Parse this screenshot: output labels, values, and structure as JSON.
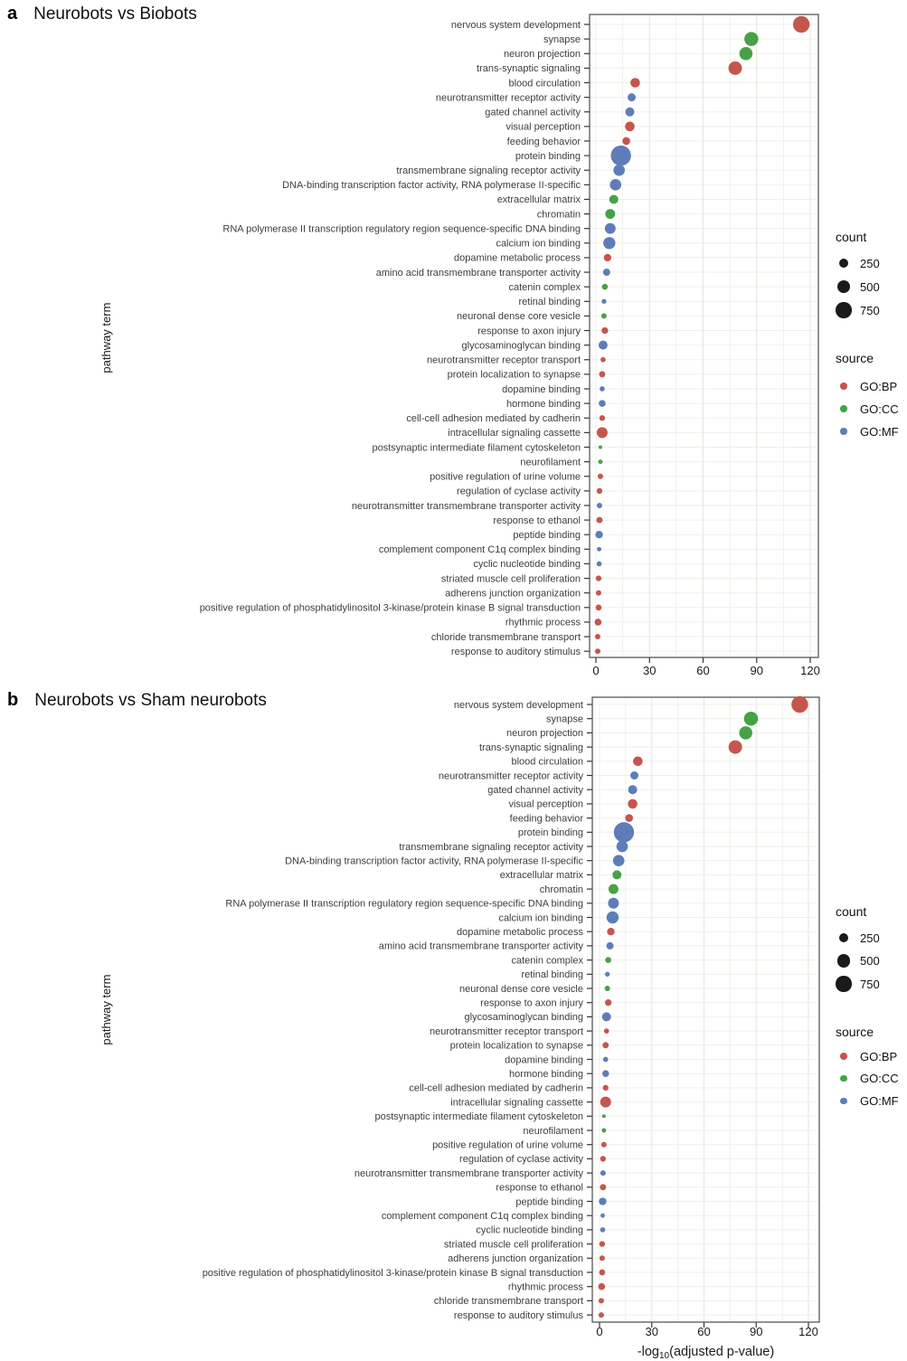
{
  "figure": {
    "panels": [
      {
        "label": "a",
        "title": "Neurobots vs Biobots"
      },
      {
        "label": "b",
        "title": "Neurobots vs Sham neurobots"
      }
    ]
  },
  "legend": {
    "count": {
      "title": "count",
      "items": [
        {
          "label": "250",
          "value": 250
        },
        {
          "label": "500",
          "value": 500
        },
        {
          "label": "750",
          "value": 750
        }
      ]
    },
    "source": {
      "title": "source",
      "items": [
        {
          "label": "GO:BP",
          "color": "#C5564E"
        },
        {
          "label": "GO:CC",
          "color": "#46A246"
        },
        {
          "label": "GO:MF",
          "color": "#5E7DB8"
        }
      ]
    },
    "circle_color": "#1A1A1A"
  },
  "chart_data": [
    {
      "panel": "a",
      "type": "scatter",
      "title": "Neurobots vs Biobots",
      "xlabel": "",
      "ylabel": "pathway term",
      "xlim": [
        0,
        120
      ],
      "xticks": [
        0,
        30,
        60,
        90,
        120
      ],
      "grid": true,
      "legend_position": "right",
      "categories": [
        "nervous system development",
        "synapse",
        "neuron projection",
        "trans-synaptic signaling",
        "blood circulation",
        "neurotransmitter receptor activity",
        "gated channel activity",
        "visual perception",
        "feeding behavior",
        "protein binding",
        "transmembrane signaling receptor activity",
        "DNA-binding transcription factor activity, RNA polymerase II-specific",
        "extracellular matrix",
        "chromatin",
        "RNA polymerase II transcription regulatory region sequence-specific DNA binding",
        "calcium ion binding",
        "dopamine metabolic process",
        "amino acid transmembrane transporter activity",
        "catenin complex",
        "retinal binding",
        "neuronal dense core vesicle",
        "response to axon injury",
        "glycosaminoglycan binding",
        "neurotransmitter receptor transport",
        "protein localization to synapse",
        "dopamine binding",
        "hormone binding",
        "cell-cell adhesion mediated by cadherin",
        "intracellular signaling cassette",
        "postsynaptic intermediate filament cytoskeleton",
        "neurofilament",
        "positive regulation of urine volume",
        "regulation of cyclase activity",
        "neurotransmitter transmembrane transporter activity",
        "response to ethanol",
        "peptide binding",
        "complement component C1q complex binding",
        "cyclic nucleotide binding",
        "striated muscle cell proliferation",
        "adherens junction organization",
        "positive regulation of phosphatidylinositol 3-kinase/protein kinase B signal transduction",
        "rhythmic process",
        "chloride transmembrane transport",
        "response to auditory stimulus"
      ],
      "source": [
        "GO:BP",
        "GO:CC",
        "GO:CC",
        "GO:BP",
        "GO:BP",
        "GO:MF",
        "GO:MF",
        "GO:BP",
        "GO:BP",
        "GO:MF",
        "GO:MF",
        "GO:MF",
        "GO:CC",
        "GO:CC",
        "GO:MF",
        "GO:MF",
        "GO:BP",
        "GO:MF",
        "GO:CC",
        "GO:MF",
        "GO:CC",
        "GO:BP",
        "GO:MF",
        "GO:BP",
        "GO:BP",
        "GO:MF",
        "GO:MF",
        "GO:BP",
        "GO:BP",
        "GO:CC",
        "GO:CC",
        "GO:BP",
        "GO:BP",
        "GO:MF",
        "GO:BP",
        "GO:MF",
        "GO:MF",
        "GO:MF",
        "GO:BP",
        "GO:BP",
        "GO:BP",
        "GO:BP",
        "GO:BP",
        "GO:BP"
      ],
      "x": [
        115,
        87,
        84,
        78,
        22,
        20,
        19,
        19,
        17,
        14,
        13,
        11,
        10,
        8,
        8,
        7.5,
        6.5,
        6,
        5,
        4.5,
        4.5,
        5,
        4,
        4,
        3.5,
        3.5,
        3.5,
        3.5,
        3.5,
        2.5,
        2.5,
        2.5,
        2,
        2,
        2,
        1.8,
        1.8,
        1.8,
        1.5,
        1.5,
        1.5,
        1.2,
        1,
        1
      ],
      "count": [
        850,
        600,
        530,
        560,
        280,
        200,
        250,
        280,
        185,
        1250,
        400,
        400,
        250,
        300,
        360,
        450,
        175,
        160,
        110,
        70,
        90,
        135,
        250,
        80,
        120,
        80,
        145,
        100,
        360,
        40,
        60,
        90,
        100,
        90,
        120,
        175,
        60,
        80,
        100,
        90,
        110,
        145,
        90,
        90
      ]
    },
    {
      "panel": "b",
      "type": "scatter",
      "title": "Neurobots vs Sham neurobots",
      "xlabel": "-log10(adjusted p-value)",
      "ylabel": "pathway term",
      "xlim": [
        0,
        120
      ],
      "xticks": [
        0,
        30,
        60,
        90,
        120
      ],
      "grid": true,
      "legend_position": "right",
      "categories": [
        "nervous system development",
        "synapse",
        "neuron projection",
        "trans-synaptic signaling",
        "blood circulation",
        "neurotransmitter receptor activity",
        "gated channel activity",
        "visual perception",
        "feeding behavior",
        "protein binding",
        "transmembrane signaling receptor activity",
        "DNA-binding transcription factor activity, RNA polymerase II-specific",
        "extracellular matrix",
        "chromatin",
        "RNA polymerase II transcription regulatory region sequence-specific DNA binding",
        "calcium ion binding",
        "dopamine metabolic process",
        "amino acid transmembrane transporter activity",
        "catenin complex",
        "retinal binding",
        "neuronal dense core vesicle",
        "response to axon injury",
        "glycosaminoglycan binding",
        "neurotransmitter receptor transport",
        "protein localization to synapse",
        "dopamine binding",
        "hormone binding",
        "cell-cell adhesion mediated by cadherin",
        "intracellular signaling cassette",
        "postsynaptic intermediate filament cytoskeleton",
        "neurofilament",
        "positive regulation of urine volume",
        "regulation of cyclase activity",
        "neurotransmitter transmembrane transporter activity",
        "response to ethanol",
        "peptide binding",
        "complement component C1q complex binding",
        "cyclic nucleotide binding",
        "striated muscle cell proliferation",
        "adherens junction organization",
        "positive regulation of phosphatidylinositol 3-kinase/protein kinase B signal transduction",
        "rhythmic process",
        "chloride transmembrane transport",
        "response to auditory stimulus"
      ],
      "source": [
        "GO:BP",
        "GO:CC",
        "GO:CC",
        "GO:BP",
        "GO:BP",
        "GO:MF",
        "GO:MF",
        "GO:BP",
        "GO:BP",
        "GO:MF",
        "GO:MF",
        "GO:MF",
        "GO:CC",
        "GO:CC",
        "GO:MF",
        "GO:MF",
        "GO:BP",
        "GO:MF",
        "GO:CC",
        "GO:MF",
        "GO:CC",
        "GO:BP",
        "GO:MF",
        "GO:BP",
        "GO:BP",
        "GO:MF",
        "GO:MF",
        "GO:BP",
        "GO:BP",
        "GO:CC",
        "GO:CC",
        "GO:BP",
        "GO:BP",
        "GO:MF",
        "GO:BP",
        "GO:MF",
        "GO:MF",
        "GO:MF",
        "GO:BP",
        "GO:BP",
        "GO:BP",
        "GO:BP",
        "GO:BP",
        "GO:BP"
      ],
      "x": [
        115,
        87,
        84,
        78,
        22,
        20,
        19,
        19,
        17,
        14,
        13,
        11,
        10,
        8,
        8,
        7.5,
        6.5,
        6,
        5,
        4.5,
        4.5,
        5,
        4,
        4,
        3.5,
        3.5,
        3.5,
        3.5,
        3.5,
        2.5,
        2.5,
        2.5,
        2,
        2,
        2,
        1.8,
        1.8,
        1.8,
        1.5,
        1.5,
        1.5,
        1.2,
        1,
        1
      ],
      "count": [
        850,
        600,
        530,
        560,
        280,
        200,
        250,
        280,
        185,
        1250,
        400,
        400,
        250,
        300,
        360,
        450,
        175,
        160,
        110,
        70,
        90,
        135,
        250,
        80,
        120,
        80,
        145,
        100,
        360,
        40,
        60,
        90,
        100,
        90,
        120,
        175,
        60,
        80,
        100,
        90,
        110,
        145,
        90,
        90
      ]
    }
  ]
}
